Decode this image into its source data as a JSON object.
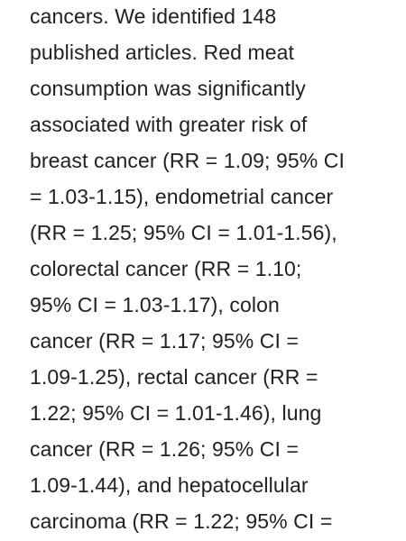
{
  "paragraph": {
    "lines": [
      "cancers. We identified 148",
      "published articles. Red meat",
      "consumption was significantly",
      "associated with greater risk of",
      "breast cancer (RR = 1.09; 95% CI",
      "= 1.03-1.15), endometrial cancer",
      "(RR = 1.25; 95% CI = 1.01-1.56),",
      "colorectal cancer (RR = 1.10;",
      "95% CI = 1.03-1.17), colon",
      "cancer (RR = 1.17; 95% CI =",
      "1.09-1.25), rectal cancer (RR =",
      "1.22; 95% CI = 1.01-1.46), lung",
      "cancer (RR = 1.26; 95% CI =",
      "1.09-1.44), and hepatocellular",
      "carcinoma (RR = 1.22; 95% CI ="
    ]
  }
}
